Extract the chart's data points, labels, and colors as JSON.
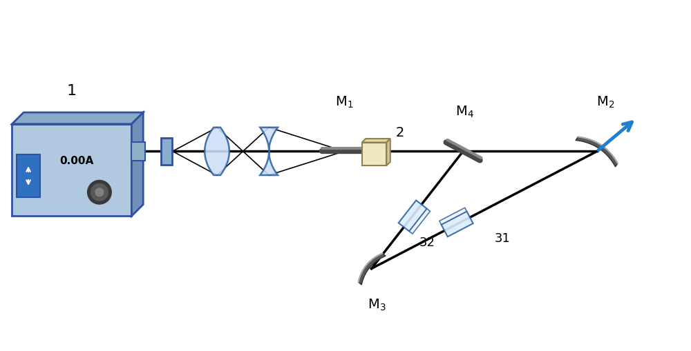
{
  "bg_color": "#ffffff",
  "line_color": "#000000",
  "beam_lw": 2.5,
  "box_face": "#b0c8e0",
  "box_top": "#8aaac8",
  "box_right": "#7090b8",
  "box_edge": "#3050a0",
  "panel_color": "#3070c0",
  "dial_outer": "#383838",
  "dial_mid": "#585858",
  "dial_inner": "#808080",
  "connector_face": "#90b0c8",
  "lens_face": "#cce0f8",
  "lens_edge": "#3060a0",
  "mirror_dark": "#484848",
  "mirror_light": "#888888",
  "crystal_face": "#f0e8c0",
  "crystal_top": "#e0d8a8",
  "crystal_right": "#d0c898",
  "crystal_edge": "#908050",
  "prism_face": "#ddeeff",
  "prism_face2": "#eef4ff",
  "prism_edge": "#3060a0",
  "output_color": "#2080d0",
  "label_fontsize": 14,
  "sublabel_fontsize": 10
}
